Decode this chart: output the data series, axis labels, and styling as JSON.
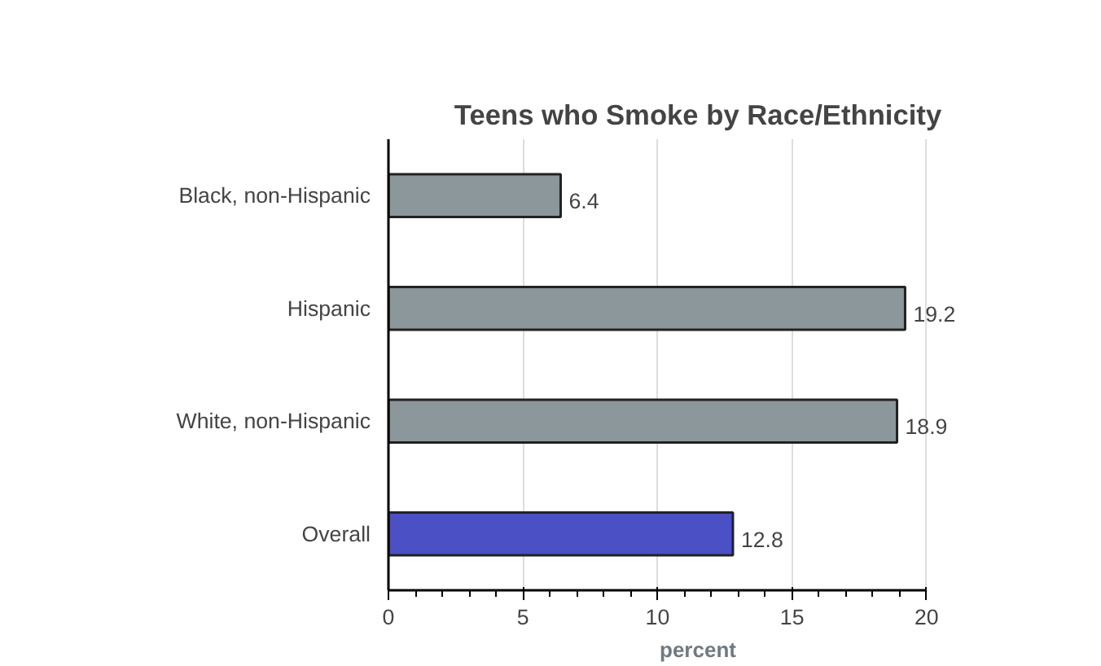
{
  "chart_data": {
    "type": "bar",
    "orientation": "horizontal",
    "title": "Teens who Smoke by Race/Ethnicity",
    "xlabel": "percent",
    "categories": [
      "Black, non-Hispanic",
      "Hispanic",
      "White, non-Hispanic",
      "Overall"
    ],
    "values": [
      6.4,
      19.2,
      18.9,
      12.8
    ],
    "colors": [
      "#8c979b",
      "#8c979b",
      "#8c979b",
      "#4b50c4"
    ],
    "xlim": [
      0,
      20
    ],
    "xticks": [
      0,
      5,
      10,
      15,
      20
    ],
    "grid": "x",
    "data_labels": true
  }
}
